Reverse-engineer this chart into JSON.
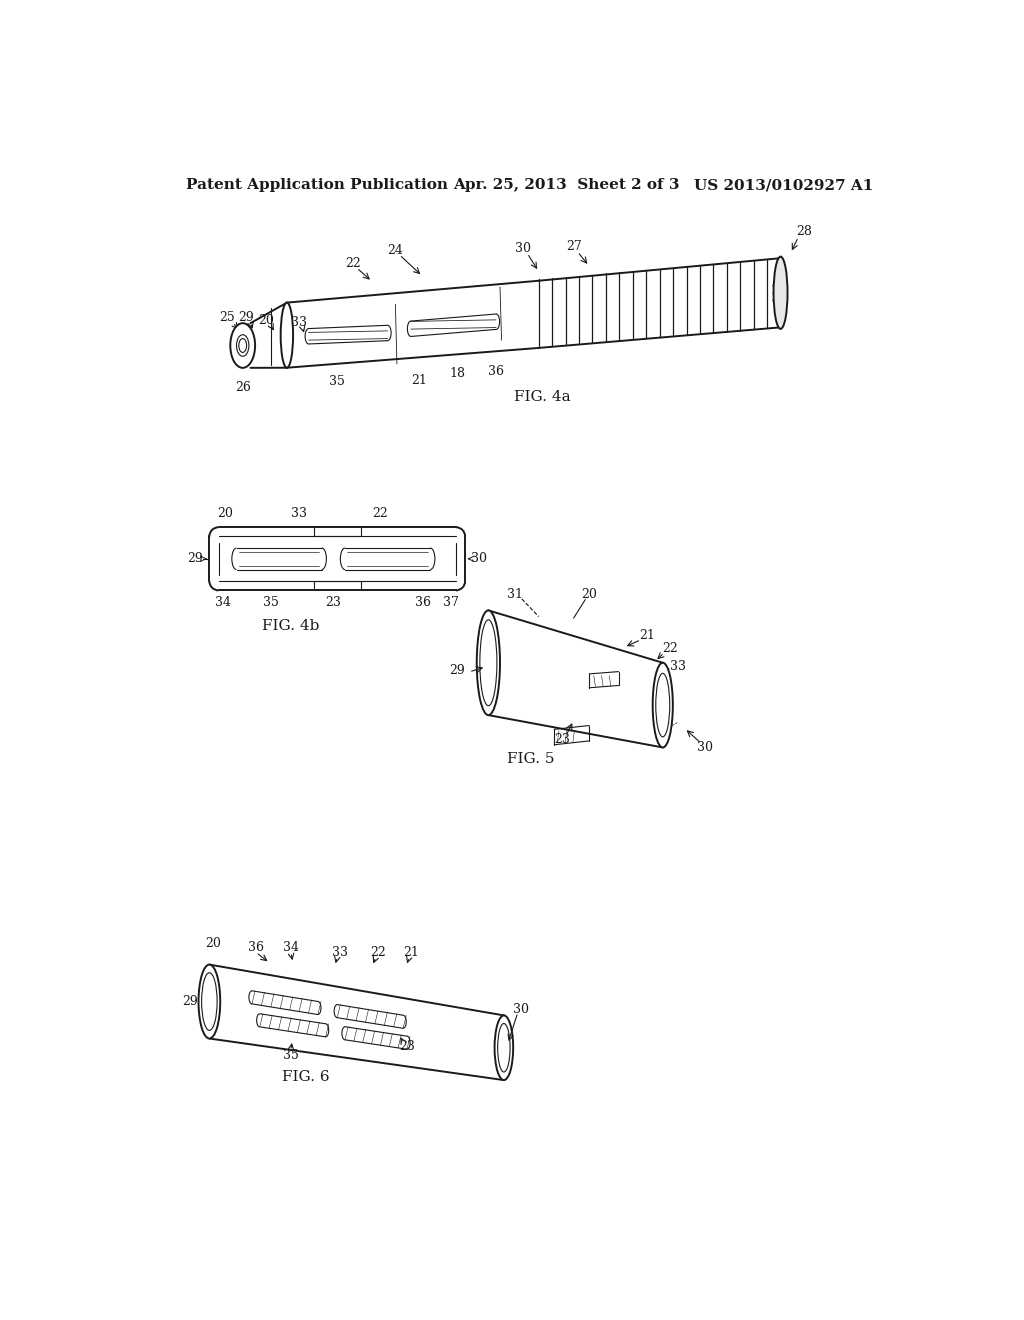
{
  "background_color": "#ffffff",
  "header_left": "Patent Application Publication",
  "header_mid": "Apr. 25, 2013  Sheet 2 of 3",
  "header_right": "US 2013/0102927 A1",
  "header_fontsize": 11,
  "fig4a_label": "FIG. 4a",
  "fig4b_label": "FIG. 4b",
  "fig5_label": "FIG. 5",
  "fig6_label": "FIG. 6",
  "line_color": "#1a1a1a",
  "line_width": 1.4,
  "thin_line": 0.8,
  "label_fontsize": 9,
  "fig_label_fontsize": 11
}
